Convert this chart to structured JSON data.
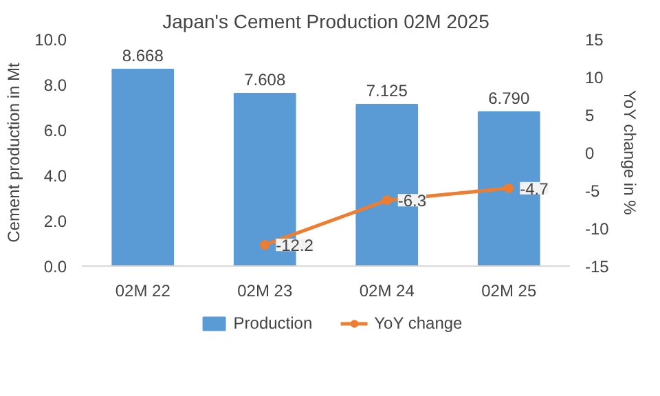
{
  "chart_data": {
    "type": "bar",
    "title": "Japan's Cement Production 02M 2025",
    "ylabel": "Cement production in Mt",
    "y2label": "YoY change in %",
    "categories": [
      "02M 22",
      "02M 23",
      "02M 24",
      "02M 25"
    ],
    "series": [
      {
        "name": "Production",
        "color": "#5b9bd5",
        "values": [
          8.668,
          7.608,
          7.125,
          6.79
        ],
        "value_labels": [
          "8.668",
          "7.608",
          "7.125",
          "6.790"
        ]
      },
      {
        "name": "YoY change",
        "type": "line",
        "axis": "y2",
        "color": "#ed7d31",
        "marker": "circle",
        "values": [
          null,
          -12.2,
          -6.3,
          -4.7
        ],
        "value_labels": [
          null,
          "-12.2",
          "-6.3",
          "-4.7"
        ]
      }
    ],
    "ylim": [
      0,
      10
    ],
    "yticks": [
      {
        "value": 0,
        "label": "0.0"
      },
      {
        "value": 2,
        "label": "2.0"
      },
      {
        "value": 4,
        "label": "4.0"
      },
      {
        "value": 6,
        "label": "6.0"
      },
      {
        "value": 8,
        "label": "8.0"
      },
      {
        "value": 10,
        "label": "10.0"
      }
    ],
    "y2lim": [
      -15,
      15
    ],
    "y2ticks": [
      -15,
      -10,
      -5,
      0,
      5,
      10,
      15
    ],
    "grid": false,
    "legend": "bottom"
  }
}
